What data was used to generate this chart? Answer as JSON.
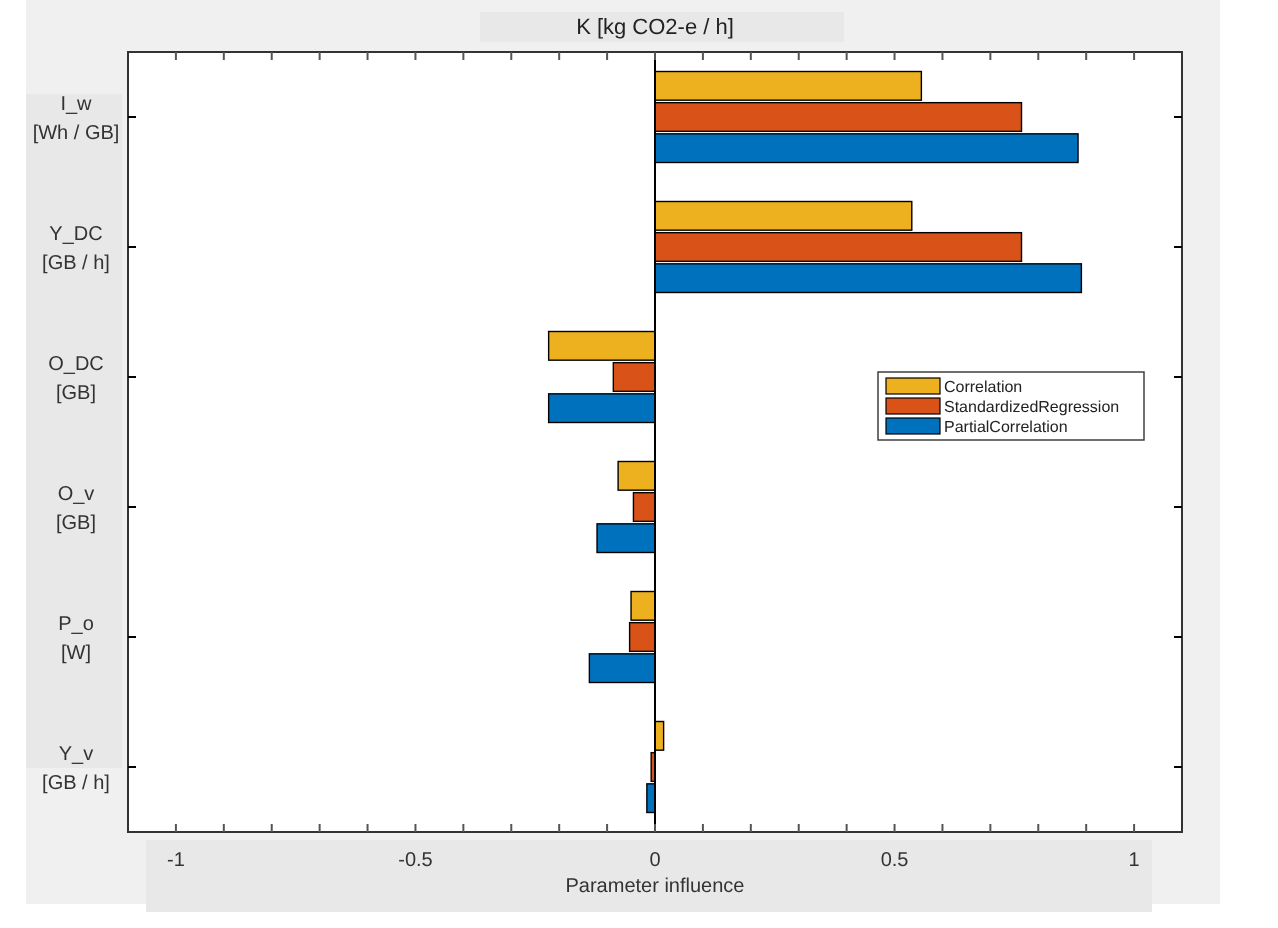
{
  "chart_data": {
    "type": "bar",
    "orientation": "horizontal",
    "title": "K [kg CO2-e / h]",
    "xlabel": "Parameter influence",
    "categories": [
      "I_w\n[Wh / GB]",
      "Y_DC\n[GB / h]",
      "O_DC\n[GB]",
      "O_v\n[GB]",
      "P_o\n[W]",
      "Y_v\n[GB / h]"
    ],
    "series": [
      {
        "name": "Correlation",
        "color": "#edb120",
        "values": [
          0.556,
          0.536,
          -0.222,
          -0.077,
          -0.05,
          0.018
        ]
      },
      {
        "name": "StandardizedRegression",
        "color": "#d95319",
        "values": [
          0.765,
          0.765,
          -0.087,
          -0.045,
          -0.053,
          -0.008
        ]
      },
      {
        "name": "PartialCorrelation",
        "color": "#0072bd",
        "values": [
          0.883,
          0.89,
          -0.222,
          -0.121,
          -0.137,
          -0.017
        ]
      }
    ],
    "xlim": [
      -1.1,
      1.1
    ],
    "xticks": [
      -1,
      {
        "value": -0.9,
        "label": null
      },
      {
        "value": -0.8,
        "label": null
      },
      {
        "value": -0.7,
        "label": null
      },
      {
        "value": -0.6,
        "label": null
      },
      -0.5,
      {
        "value": -0.4,
        "label": null
      },
      {
        "value": -0.3,
        "label": null
      },
      {
        "value": -0.2,
        "label": null
      },
      {
        "value": -0.1,
        "label": null
      },
      0,
      {
        "value": 0.1,
        "label": null
      },
      {
        "value": 0.2,
        "label": null
      },
      {
        "value": 0.3,
        "label": null
      },
      {
        "value": 0.4,
        "label": null
      },
      0.5,
      {
        "value": 0.6,
        "label": null
      },
      {
        "value": 0.7,
        "label": null
      },
      {
        "value": 0.8,
        "label": null
      },
      {
        "value": 0.9,
        "label": null
      },
      1
    ],
    "ref_lines": [
      {
        "axis": "x",
        "value": 0,
        "color": "#000000"
      }
    ],
    "legend": "right",
    "grid": false
  }
}
